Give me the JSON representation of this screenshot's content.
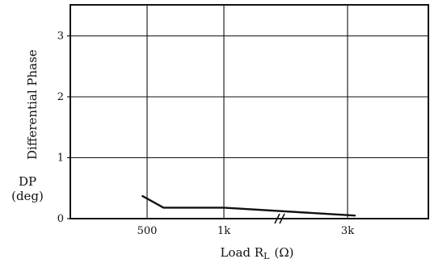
{
  "chart_data": {
    "type": "line",
    "title": "",
    "xlabel": "Load R",
    "xlabel_subscript": "L",
    "xlabel_unit": "(Ω)",
    "ylabel": "Differential Phase",
    "ylabel_abbrev": "DP",
    "ylabel_unit": "(deg)",
    "x_scale": "log",
    "x_axis_break": "between 1k and 3k",
    "x_ticks": [
      {
        "value": 500,
        "label": "500"
      },
      {
        "value": 1000,
        "label": "1k"
      },
      {
        "value": 3000,
        "label": "3k"
      }
    ],
    "ylim": [
      0,
      3.5
    ],
    "y_ticks": [
      {
        "value": 0,
        "label": "0"
      },
      {
        "value": 1,
        "label": "1"
      },
      {
        "value": 2,
        "label": "2"
      },
      {
        "value": 3,
        "label": "3"
      }
    ],
    "grid": true,
    "series": [
      {
        "color": "#111111",
        "points": [
          {
            "x": 480,
            "y": 0.37
          },
          {
            "x": 580,
            "y": 0.18
          },
          {
            "x": 1000,
            "y": 0.18
          },
          {
            "x": 3200,
            "y": 0.05
          }
        ]
      }
    ]
  }
}
